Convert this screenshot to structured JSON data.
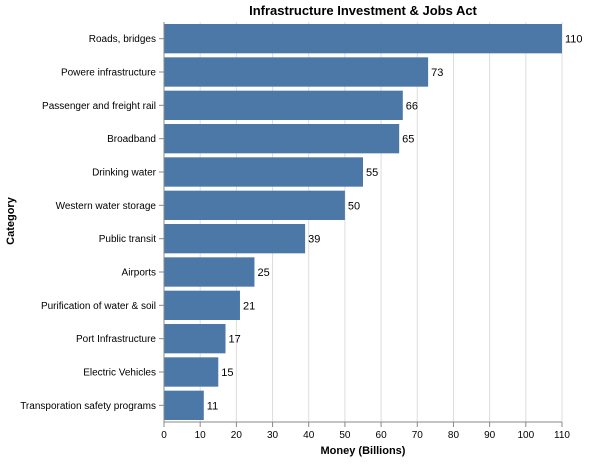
{
  "chart_data": {
    "type": "bar",
    "orientation": "horizontal",
    "title": "Infrastructure Investment & Jobs Act",
    "xlabel": "Money (Billions)",
    "ylabel": "Category",
    "xlim": [
      0,
      110
    ],
    "xticks": [
      0,
      10,
      20,
      30,
      40,
      50,
      60,
      70,
      80,
      90,
      100,
      110
    ],
    "grid": "vertical",
    "bar_color": "#4c78a8",
    "categories": [
      "Roads, bridges",
      "Powere infrastructure",
      "Passenger and freight rail",
      "Broadband",
      "Drinking water",
      "Western water storage",
      "Public transit",
      "Airports",
      "Purification of water & soil",
      "Port Infrastructure",
      "Electric Vehicles",
      "Transporation safety programs"
    ],
    "values": [
      110,
      73,
      66,
      65,
      55,
      50,
      39,
      25,
      21,
      17,
      15,
      11
    ],
    "data_labels": [
      "110",
      "73",
      "66",
      "65",
      "55",
      "50",
      "39",
      "25",
      "21",
      "17",
      "15",
      "11"
    ]
  }
}
